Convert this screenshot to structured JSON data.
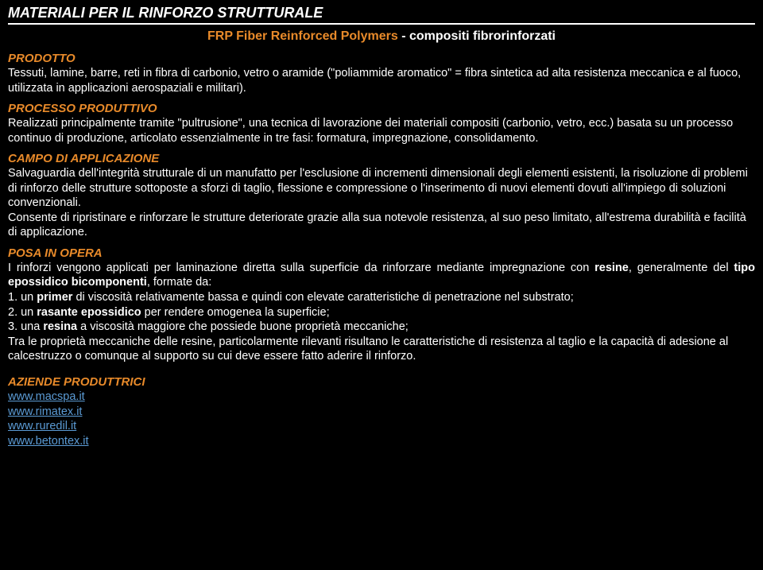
{
  "colors": {
    "background": "#000000",
    "text": "#ffffff",
    "accent": "#e88a2a",
    "link": "#5b9bd5",
    "rule": "#ffffff"
  },
  "title": "MATERIALI PER IL RINFORZO STRUTTURALE",
  "subtitle": {
    "orange": "FRP Fiber Reinforced Polymers",
    "white": " - compositi fibrorinforzati"
  },
  "sections": {
    "prodotto": {
      "head": "PRODOTTO",
      "text": "Tessuti, lamine, barre, reti in fibra di carbonio, vetro o aramide (\"poliammide aromatico\" = fibra sintetica ad alta resistenza meccanica e al fuoco, utilizzata in applicazioni aerospaziali e militari)."
    },
    "processo": {
      "head": "PROCESSO PRODUTTIVO",
      "text": "Realizzati principalmente tramite \"pultrusione\", una tecnica di lavorazione dei materiali compositi (carbonio, vetro, ecc.) basata su un processo continuo di produzione, articolato essenzialmente in tre fasi: formatura, impregnazione, consolidamento."
    },
    "campo": {
      "head": "CAMPO DI APPLICAZIONE",
      "p1": "Salvaguardia dell'integrità strutturale di un manufatto per l'esclusione di incrementi dimensionali degli elementi esistenti, la risoluzione di problemi di rinforzo delle strutture sottoposte a sforzi di taglio, flessione e compressione o l'inserimento di nuovi elementi dovuti all'impiego di soluzioni convenzionali.",
      "p2": "Consente di ripristinare e rinforzare le strutture deteriorate grazie alla sua notevole resistenza, al suo peso limitato, all'estrema durabilità e facilità di applicazione."
    },
    "posa": {
      "head": "POSA IN OPERA",
      "intro_a": "I rinforzi vengono applicati per laminazione diretta sulla superficie da rinforzare mediante impregnazione con ",
      "intro_b_bold": "resine",
      "intro_c": ", generalmente del ",
      "intro_d_bold": "tipo epossidico bicomponenti",
      "intro_e": ", formate da:",
      "li1_a": "1. un ",
      "li1_b_bold": "primer",
      "li1_c": " di viscosità relativamente bassa e quindi con elevate caratteristiche di penetrazione nel substrato;",
      "li2_a": "2. un ",
      "li2_b_bold": "rasante epossidico",
      "li2_c": " per rendere omogenea la superficie;",
      "li3_a": "3. una ",
      "li3_b_bold": "resina",
      "li3_c": " a viscosità maggiore che possiede buone proprietà meccaniche;",
      "tail": "Tra le proprietà meccaniche delle resine, particolarmente rilevanti risultano le caratteristiche di resistenza al taglio e la capacità di adesione al calcestruzzo o comunque al supporto su cui deve essere fatto aderire il rinforzo."
    },
    "aziende": {
      "head": "AZIENDE PRODUTTRICI",
      "links": [
        "www.macspa.it",
        "www.rimatex.it",
        "www.ruredil.it",
        "www.betontex.it"
      ]
    }
  }
}
